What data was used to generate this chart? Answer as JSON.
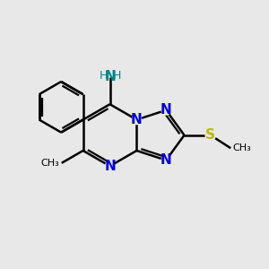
{
  "bg_color": "#e8e8e8",
  "bond_color": "#000000",
  "N_color": "#0000dd",
  "S_color": "#bbbb00",
  "NH2_color": "#008888",
  "line_width": 1.8,
  "font_size_atom": 11,
  "font_size_small": 9,
  "BL": 0.115,
  "N1x": 0.508,
  "N1y": 0.555
}
